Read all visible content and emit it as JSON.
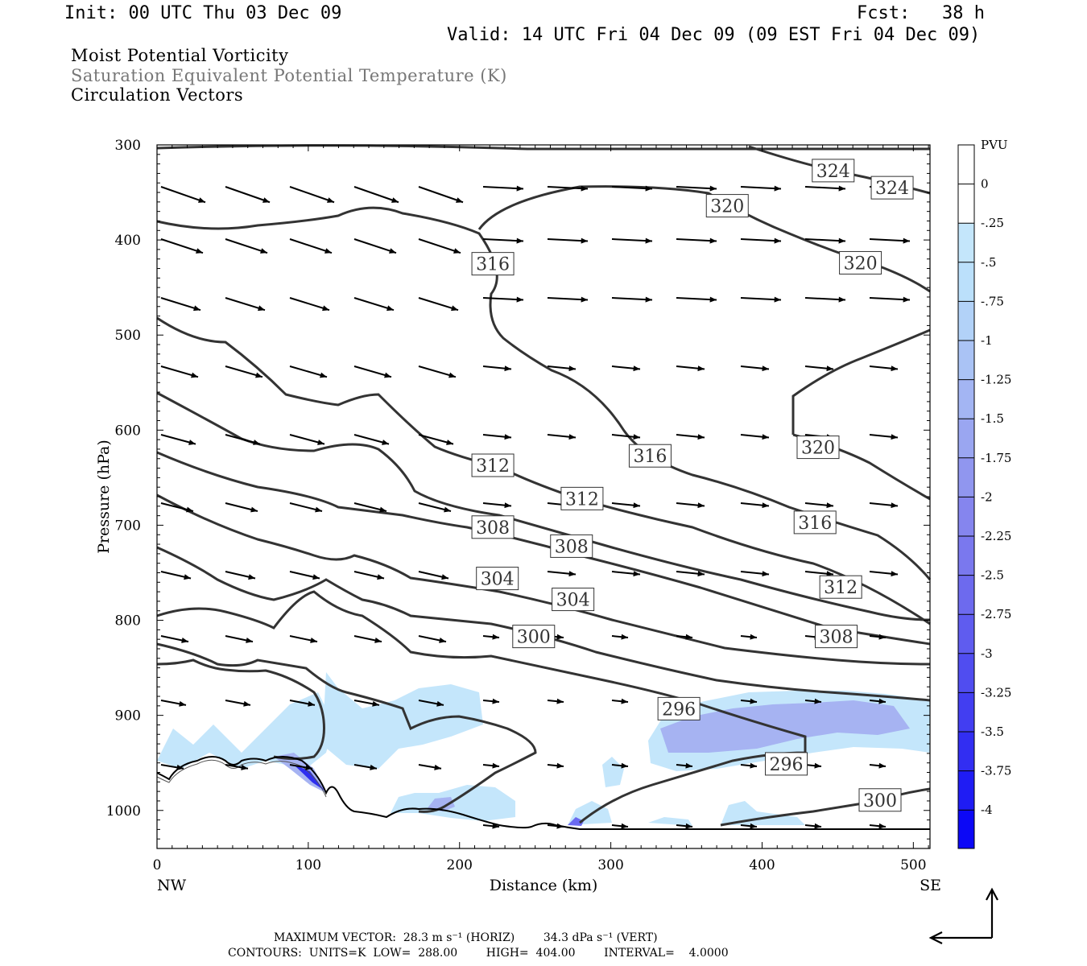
{
  "header": {
    "init": "Init: 00 UTC Thu 03 Dec 09",
    "fcst": "Fcst:   38 h",
    "valid": "Valid: 14 UTC Fri 04 Dec 09 (09 EST Fri 04 Dec 09)"
  },
  "titles": {
    "line1": "Moist Potential Vorticity",
    "line2": "Saturation Equivalent Potential Temperature (K)",
    "line3": "Circulation Vectors"
  },
  "colors": {
    "contour": "#333333",
    "pv_light": "#c4e6fb",
    "pv_mid": "#a6b3f2",
    "pv_dark": "#2f2fef",
    "ground": "#000000"
  },
  "footer": {
    "line1": "MAXIMUM VECTOR:  28.3 m s⁻¹ (HORIZ)        34.3 dPa s⁻¹ (VERT)",
    "line2": "CONTOURS:  UNITS=K  LOW=  288.00        HIGH=  404.00        INTERVAL=    4.0000"
  },
  "chart_data": {
    "type": "cross-section contour",
    "xlabel": "Distance (km)",
    "ylabel": "Pressure (hPa)",
    "x_ticks": [
      0,
      100,
      200,
      300,
      400,
      500
    ],
    "y_ticks": [
      300,
      400,
      500,
      600,
      700,
      800,
      900,
      1000
    ],
    "xlim": [
      0,
      511
    ],
    "ylim": [
      300,
      1040
    ],
    "x_end_labels": {
      "left": "NW",
      "right": "SE"
    },
    "contour_labels": [
      {
        "text": "324",
        "x": 447,
        "y": 327
      },
      {
        "text": "324",
        "x": 486,
        "y": 345
      },
      {
        "text": "320",
        "x": 377,
        "y": 364
      },
      {
        "text": "320",
        "x": 465,
        "y": 424
      },
      {
        "text": "320",
        "x": 437,
        "y": 618
      },
      {
        "text": "316",
        "x": 222,
        "y": 425
      },
      {
        "text": "316",
        "x": 326,
        "y": 627
      },
      {
        "text": "316",
        "x": 435,
        "y": 697
      },
      {
        "text": "312",
        "x": 222,
        "y": 637
      },
      {
        "text": "312",
        "x": 281,
        "y": 672
      },
      {
        "text": "312",
        "x": 452,
        "y": 765
      },
      {
        "text": "308",
        "x": 222,
        "y": 702
      },
      {
        "text": "308",
        "x": 274,
        "y": 722
      },
      {
        "text": "308",
        "x": 449,
        "y": 817
      },
      {
        "text": "304",
        "x": 225,
        "y": 756
      },
      {
        "text": "304",
        "x": 275,
        "y": 778
      },
      {
        "text": "300",
        "x": 249,
        "y": 817
      },
      {
        "text": "300",
        "x": 478,
        "y": 989
      },
      {
        "text": "296",
        "x": 345,
        "y": 893
      },
      {
        "text": "296",
        "x": 416,
        "y": 951
      }
    ],
    "colorbar": {
      "unit": "PVU",
      "labels": [
        "0",
        "-.25",
        "-.5",
        "-.75",
        "-1",
        "-1.25",
        "-1.5",
        "-1.75",
        "-2",
        "-2.25",
        "-2.5",
        "-2.75",
        "-3",
        "-3.25",
        "-3.5",
        "-3.75",
        "-4"
      ]
    }
  }
}
